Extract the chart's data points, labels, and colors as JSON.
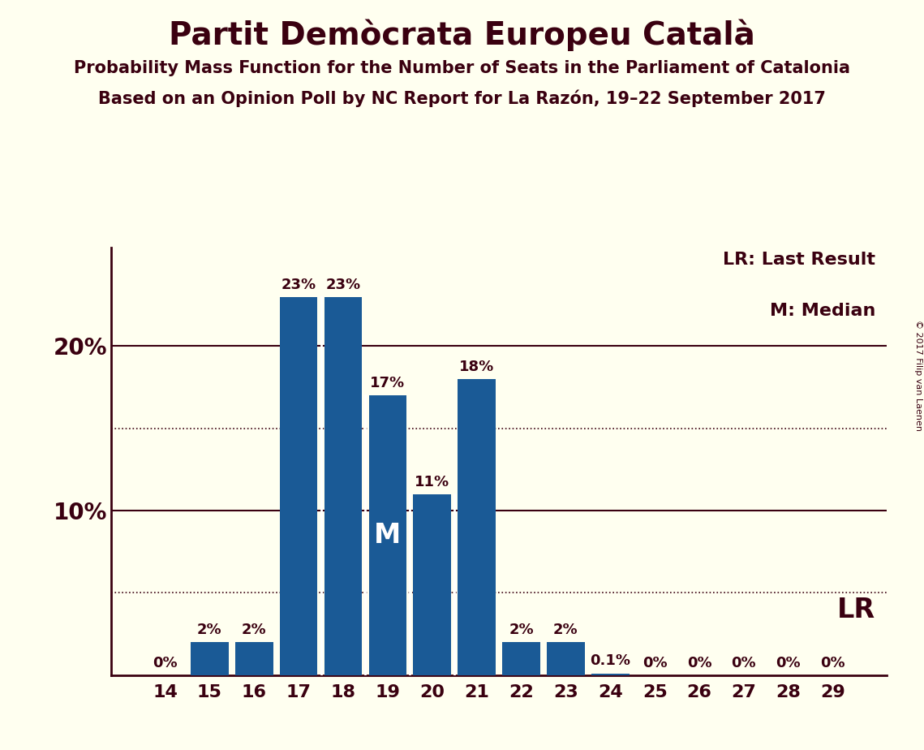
{
  "title": "Partit Demòcrata Europeu Català",
  "subtitle1": "Probability Mass Function for the Number of Seats in the Parliament of Catalonia",
  "subtitle2": "Based on an Opinion Poll by NC Report for La Razón, 19–22 September 2017",
  "copyright": "© 2017 Filip van Laenen",
  "categories": [
    14,
    15,
    16,
    17,
    18,
    19,
    20,
    21,
    22,
    23,
    24,
    25,
    26,
    27,
    28,
    29
  ],
  "values": [
    0.0,
    2.0,
    2.0,
    23.0,
    23.0,
    17.0,
    11.0,
    18.0,
    2.0,
    2.0,
    0.1,
    0.0,
    0.0,
    0.0,
    0.0,
    0.0
  ],
  "labels": [
    "0%",
    "2%",
    "2%",
    "23%",
    "23%",
    "17%",
    "11%",
    "18%",
    "2%",
    "2%",
    "0.1%",
    "0%",
    "0%",
    "0%",
    "0%",
    "0%"
  ],
  "bar_color": "#1a5a96",
  "background_color": "#fffff0",
  "text_color": "#3a0010",
  "median_bar": 19,
  "last_result_bar": 29,
  "dotted_lines": [
    5.0,
    15.0
  ],
  "solid_lines": [
    10.0,
    20.0
  ],
  "ylim": [
    0,
    26
  ],
  "legend_lr": "LR: Last Result",
  "legend_m": "M: Median",
  "legend_lr_short": "LR",
  "legend_m_short": "M",
  "label_fontsize": 13,
  "tick_fontsize": 16,
  "ytick_fontsize": 20,
  "title_fontsize": 28,
  "subtitle_fontsize": 15,
  "legend_fontsize": 16,
  "m_fontsize": 24,
  "lr_fontsize": 24
}
